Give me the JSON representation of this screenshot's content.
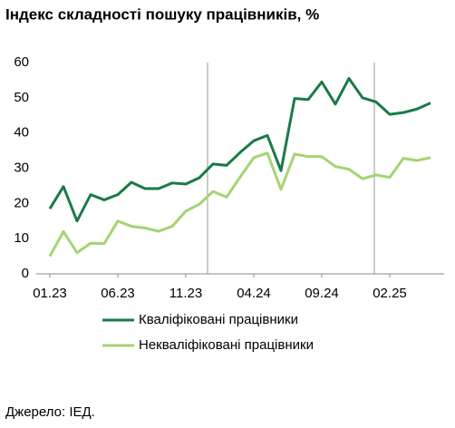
{
  "chart_data": {
    "type": "line",
    "title": "Індекс складності пошуку працівників, %",
    "categories": [
      "01.23",
      null,
      null,
      null,
      null,
      "06.23",
      null,
      null,
      null,
      null,
      "11.23",
      null,
      null,
      null,
      null,
      "04.24",
      null,
      null,
      null,
      null,
      "09.24",
      null,
      null,
      null,
      null,
      "02.25",
      null,
      null,
      null
    ],
    "series": [
      {
        "name": "Кваліфіковані працівники",
        "color": "#1b7a48",
        "values": [
          18.5,
          24.8,
          15,
          22.5,
          21,
          22.5,
          26,
          24.2,
          24.2,
          25.8,
          25.5,
          27.3,
          31.2,
          30.8,
          34.5,
          37.8,
          39.3,
          29.3,
          49.8,
          49.5,
          54.5,
          48.2,
          55.5,
          50,
          48.8,
          45.3,
          45.8,
          46.8,
          48.5
        ]
      },
      {
        "name": "Некваліфіковані працівники",
        "color": "#a6d373",
        "values": [
          5,
          12,
          6,
          8.7,
          8.6,
          15,
          13.5,
          13,
          12.1,
          13.5,
          17.8,
          19.8,
          23.4,
          21.8,
          27.5,
          33,
          34.3,
          24,
          34,
          33.3,
          33.3,
          30.5,
          29.7,
          27,
          28.1,
          27.4,
          32.8,
          32.2,
          33
        ]
      }
    ],
    "ylim": [
      0,
      60
    ],
    "yticks": [
      0,
      10,
      20,
      30,
      40,
      50,
      60
    ],
    "source": "Джерело: ІЕД."
  }
}
